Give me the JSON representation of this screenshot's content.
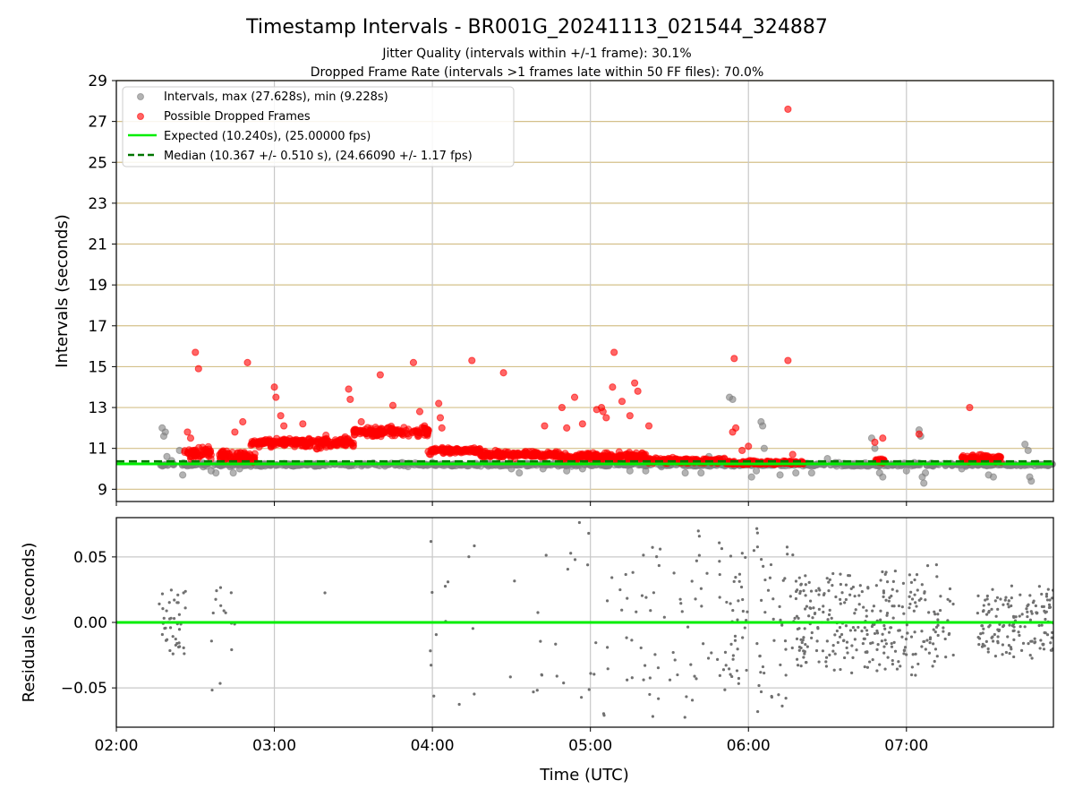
{
  "chart_data": [
    {
      "type": "scatter",
      "title": "Timestamp Intervals - BR001G_20241113_021544_324887",
      "subtitle_lines": [
        "Jitter Quality (intervals within +/-1 frame): 30.1%",
        "Dropped Frame Rate (intervals >1 frames late within 50 FF files): 70.0%"
      ],
      "xlabel": "",
      "ylabel": "Intervals (seconds)",
      "x_unit": "hours (UTC)",
      "xlim": [
        2.0,
        7.93
      ],
      "ylim": [
        8.4,
        29
      ],
      "y_ticks": [
        9,
        11,
        13,
        15,
        17,
        19,
        21,
        23,
        25,
        27,
        29
      ],
      "x_ticks": [
        2,
        3,
        4,
        5,
        6,
        7
      ],
      "x_tick_labels": [
        "02:00",
        "03:00",
        "04:00",
        "05:00",
        "06:00",
        "07:00"
      ],
      "grid": true,
      "legend_position": "top-left",
      "legend": [
        "Intervals, max (27.628s), min (9.228s)",
        "Possible Dropped Frames",
        "Expected (10.240s), (25.00000 fps)",
        "Median (10.367 +/- 0.510 s), (24.66090 +/- 1.17 fps)"
      ],
      "expected_interval": 10.24,
      "median_interval": 10.367,
      "series": [
        {
          "name": "Intervals, max (27.628s), min (9.228s)",
          "color": "#808080",
          "note_density": "continuous band around 10.2 s from 02:18 to 07:55",
          "points": [
            [
              2.29,
              12.0
            ],
            [
              2.3,
              11.6
            ],
            [
              2.31,
              11.8
            ],
            [
              2.32,
              10.6
            ],
            [
              2.35,
              10.4
            ],
            [
              2.4,
              10.9
            ],
            [
              2.42,
              9.7
            ],
            [
              2.45,
              10.2
            ],
            [
              2.55,
              10.1
            ],
            [
              2.6,
              9.9
            ],
            [
              2.63,
              9.8
            ],
            [
              2.72,
              10.1
            ],
            [
              2.74,
              9.8
            ],
            [
              2.78,
              10.0
            ],
            [
              4.5,
              10.0
            ],
            [
              4.55,
              9.8
            ],
            [
              4.7,
              10.0
            ],
            [
              4.85,
              9.9
            ],
            [
              4.95,
              10.0
            ],
            [
              5.25,
              9.9
            ],
            [
              5.35,
              9.9
            ],
            [
              5.45,
              10.1
            ],
            [
              5.6,
              9.8
            ],
            [
              5.7,
              9.8
            ],
            [
              5.75,
              10.6
            ],
            [
              5.82,
              10.5
            ],
            [
              5.88,
              13.5
            ],
            [
              5.9,
              13.4
            ],
            [
              6.02,
              9.6
            ],
            [
              6.05,
              9.9
            ],
            [
              6.08,
              12.3
            ],
            [
              6.09,
              12.1
            ],
            [
              6.1,
              11.0
            ],
            [
              6.2,
              9.7
            ],
            [
              6.3,
              9.8
            ],
            [
              6.4,
              9.8
            ],
            [
              6.5,
              10.5
            ],
            [
              6.55,
              10.3
            ],
            [
              6.78,
              11.5
            ],
            [
              6.8,
              11.0
            ],
            [
              6.83,
              9.8
            ],
            [
              6.85,
              9.6
            ],
            [
              7.0,
              9.9
            ],
            [
              7.05,
              10.3
            ],
            [
              7.08,
              11.9
            ],
            [
              7.09,
              11.6
            ],
            [
              7.1,
              9.6
            ],
            [
              7.11,
              9.3
            ],
            [
              7.12,
              9.8
            ],
            [
              7.35,
              10.0
            ],
            [
              7.42,
              10.4
            ],
            [
              7.52,
              9.7
            ],
            [
              7.55,
              9.6
            ],
            [
              7.75,
              11.2
            ],
            [
              7.77,
              10.9
            ],
            [
              7.78,
              9.6
            ],
            [
              7.79,
              9.4
            ]
          ]
        },
        {
          "name": "Possible Dropped Frames",
          "color": "#ff0000",
          "points": [
            [
              2.5,
              15.7
            ],
            [
              2.52,
              14.9
            ],
            [
              2.45,
              11.8
            ],
            [
              2.47,
              11.5
            ],
            [
              2.83,
              15.2
            ],
            [
              2.8,
              12.3
            ],
            [
              2.75,
              11.8
            ],
            [
              3.0,
              14.0
            ],
            [
              3.01,
              13.5
            ],
            [
              3.04,
              12.6
            ],
            [
              3.06,
              12.1
            ],
            [
              3.12,
              11.4
            ],
            [
              3.18,
              12.2
            ],
            [
              3.47,
              13.9
            ],
            [
              3.48,
              13.4
            ],
            [
              3.55,
              12.3
            ],
            [
              3.67,
              14.6
            ],
            [
              3.75,
              13.1
            ],
            [
              3.88,
              15.2
            ],
            [
              3.92,
              12.8
            ],
            [
              3.95,
              12.1
            ],
            [
              4.04,
              13.2
            ],
            [
              4.05,
              12.5
            ],
            [
              4.06,
              12.0
            ],
            [
              4.25,
              15.3
            ],
            [
              4.45,
              14.7
            ],
            [
              4.71,
              12.1
            ],
            [
              4.82,
              13.0
            ],
            [
              4.85,
              12.0
            ],
            [
              4.9,
              13.5
            ],
            [
              4.95,
              12.2
            ],
            [
              5.04,
              12.9
            ],
            [
              5.07,
              13.0
            ],
            [
              5.08,
              12.8
            ],
            [
              5.1,
              12.5
            ],
            [
              5.15,
              15.7
            ],
            [
              5.14,
              14.0
            ],
            [
              5.2,
              13.3
            ],
            [
              5.25,
              12.6
            ],
            [
              5.28,
              14.2
            ],
            [
              5.3,
              13.8
            ],
            [
              5.37,
              12.1
            ],
            [
              5.91,
              15.4
            ],
            [
              5.9,
              11.8
            ],
            [
              5.92,
              12.0
            ],
            [
              5.96,
              10.9
            ],
            [
              6.0,
              11.1
            ],
            [
              6.25,
              27.6
            ],
            [
              6.25,
              15.3
            ],
            [
              6.28,
              10.7
            ],
            [
              6.8,
              11.3
            ],
            [
              6.85,
              11.5
            ],
            [
              7.08,
              11.7
            ],
            [
              7.4,
              13.0
            ]
          ],
          "bands": [
            {
              "x_start": 2.43,
              "x_end": 2.6,
              "y_center": 10.8,
              "spread": 0.5
            },
            {
              "x_start": 2.65,
              "x_end": 2.88,
              "y_center": 10.6,
              "spread": 0.5
            },
            {
              "x_start": 2.85,
              "x_end": 3.2,
              "y_center": 11.3,
              "spread": 0.3
            },
            {
              "x_start": 3.15,
              "x_end": 3.5,
              "y_center": 11.3,
              "spread": 0.45
            },
            {
              "x_start": 3.5,
              "x_end": 3.98,
              "y_center": 11.8,
              "spread": 0.35
            },
            {
              "x_start": 3.97,
              "x_end": 4.3,
              "y_center": 10.9,
              "spread": 0.25
            },
            {
              "x_start": 4.3,
              "x_end": 4.8,
              "y_center": 10.7,
              "spread": 0.25
            },
            {
              "x_start": 4.8,
              "x_end": 5.35,
              "y_center": 10.6,
              "spread": 0.3
            },
            {
              "x_start": 5.35,
              "x_end": 5.85,
              "y_center": 10.4,
              "spread": 0.2
            },
            {
              "x_start": 5.85,
              "x_end": 6.35,
              "y_center": 10.3,
              "spread": 0.15
            },
            {
              "x_start": 6.8,
              "x_end": 6.86,
              "y_center": 10.4,
              "spread": 0.2
            },
            {
              "x_start": 7.35,
              "x_end": 7.6,
              "y_center": 10.5,
              "spread": 0.3
            }
          ]
        },
        {
          "name": "Expected (10.240s), (25.00000 fps)",
          "color": "#00ee00",
          "line_y": 10.24
        },
        {
          "name": "Median (10.367 +/- 0.510 s), (24.66090 +/- 1.17 fps)",
          "color": "#007500",
          "line_y": 10.367
        }
      ]
    },
    {
      "type": "scatter",
      "title": "",
      "xlabel": "Time (UTC)",
      "ylabel": "Residuals (seconds)",
      "xlim": [
        2.0,
        7.93
      ],
      "ylim": [
        -0.08,
        0.08
      ],
      "y_ticks": [
        -0.05,
        0.0,
        0.05
      ],
      "y_tick_labels": [
        "−0.05",
        "0.00",
        "0.05"
      ],
      "x_ticks": [
        2,
        3,
        4,
        5,
        6,
        7
      ],
      "x_tick_labels": [
        "02:00",
        "03:00",
        "04:00",
        "05:00",
        "06:00",
        "07:00"
      ],
      "grid": true,
      "series": [
        {
          "name": "",
          "color": "#707070",
          "zero_line_color": "#00ee00",
          "clusters": [
            {
              "x_start": 2.27,
              "x_end": 2.45,
              "count": 40,
              "spread": 0.035
            },
            {
              "x_start": 2.6,
              "x_end": 2.75,
              "count": 14,
              "spread": 0.07
            },
            {
              "x_start": 3.3,
              "x_end": 3.33,
              "count": 1,
              "spread": 0.03
            },
            {
              "x_start": 3.98,
              "x_end": 4.3,
              "count": 14,
              "spread": 0.08
            },
            {
              "x_start": 4.45,
              "x_end": 5.1,
              "count": 25,
              "spread": 0.08
            },
            {
              "x_start": 5.1,
              "x_end": 5.8,
              "count": 60,
              "spread": 0.08
            },
            {
              "x_start": 5.8,
              "x_end": 6.3,
              "count": 90,
              "spread": 0.08
            },
            {
              "x_start": 6.3,
              "x_end": 6.8,
              "count": 160,
              "spread": 0.04
            },
            {
              "x_start": 6.8,
              "x_end": 7.3,
              "count": 140,
              "spread": 0.045
            },
            {
              "x_start": 7.45,
              "x_end": 7.93,
              "count": 150,
              "spread": 0.03
            }
          ]
        }
      ]
    }
  ]
}
